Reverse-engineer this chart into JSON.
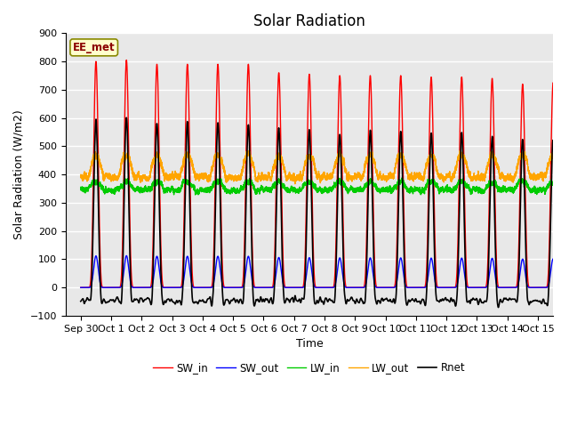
{
  "title": "Solar Radiation",
  "xlabel": "Time",
  "ylabel": "Solar Radiation (W/m2)",
  "ylim": [
    -100,
    900
  ],
  "xlim_start": -0.5,
  "xlim_end": 15.5,
  "yticks": [
    -100,
    0,
    100,
    200,
    300,
    400,
    500,
    600,
    700,
    800,
    900
  ],
  "xtick_positions": [
    0,
    1,
    2,
    3,
    4,
    5,
    6,
    7,
    8,
    9,
    10,
    11,
    12,
    13,
    14,
    15
  ],
  "xtick_labels": [
    "Sep 30",
    "Oct 1",
    "Oct 2",
    "Oct 3",
    "Oct 4",
    "Oct 5",
    "Oct 6",
    "Oct 7",
    "Oct 8",
    "Oct 9",
    "Oct 10",
    "Oct 11",
    "Oct 12",
    "Oct 13",
    "Oct 14",
    "Oct 15"
  ],
  "legend_labels": [
    "SW_in",
    "SW_out",
    "LW_in",
    "LW_out",
    "Rnet"
  ],
  "colors": {
    "SW_in": "#ff0000",
    "SW_out": "#0000ff",
    "LW_in": "#00cc00",
    "LW_out": "#ffa500",
    "Rnet": "#000000"
  },
  "line_widths": {
    "SW_in": 1.0,
    "SW_out": 1.0,
    "LW_in": 1.0,
    "LW_out": 1.0,
    "Rnet": 1.2
  },
  "watermark_text": "EE_met",
  "watermark_color": "#8b0000",
  "watermark_bg": "#ffffcc",
  "bg_color": "#e8e8e8",
  "grid_color": "#ffffff",
  "title_fontsize": 12,
  "label_fontsize": 9,
  "tick_fontsize": 8
}
